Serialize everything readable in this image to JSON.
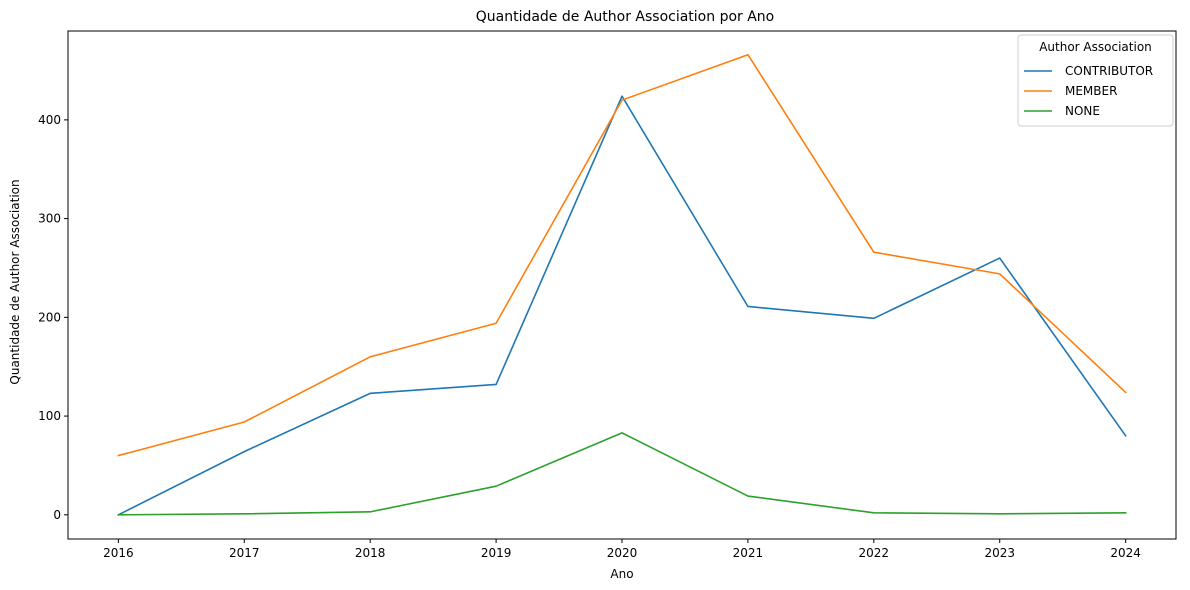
{
  "chart_data": {
    "type": "line",
    "title": "Quantidade de Author Association por Ano",
    "xlabel": "Ano",
    "ylabel": "Quantidade de Author Association",
    "x": [
      2016,
      2017,
      2018,
      2019,
      2020,
      2021,
      2022,
      2023,
      2024
    ],
    "x_ticks": [
      "2016",
      "2017",
      "2018",
      "2019",
      "2020",
      "2021",
      "2022",
      "2023",
      "2024"
    ],
    "y_ticks": [
      0,
      100,
      200,
      300,
      400
    ],
    "xlim": [
      2015.6,
      2024.4
    ],
    "ylim": [
      -24.5,
      490
    ],
    "grid": false,
    "legend": {
      "title": "Author Association",
      "placement": "top-right"
    },
    "series": [
      {
        "name": "CONTRIBUTOR",
        "color": "#1f77b4",
        "values": [
          0,
          64,
          123,
          132,
          424,
          211,
          199,
          260,
          80
        ]
      },
      {
        "name": "MEMBER",
        "color": "#ff7f0e",
        "values": [
          60,
          94,
          160,
          194,
          420,
          466,
          266,
          244,
          124
        ]
      },
      {
        "name": "NONE",
        "color": "#2ca02c",
        "values": [
          0,
          1,
          3,
          29,
          83,
          19,
          2,
          1,
          2
        ]
      }
    ]
  }
}
